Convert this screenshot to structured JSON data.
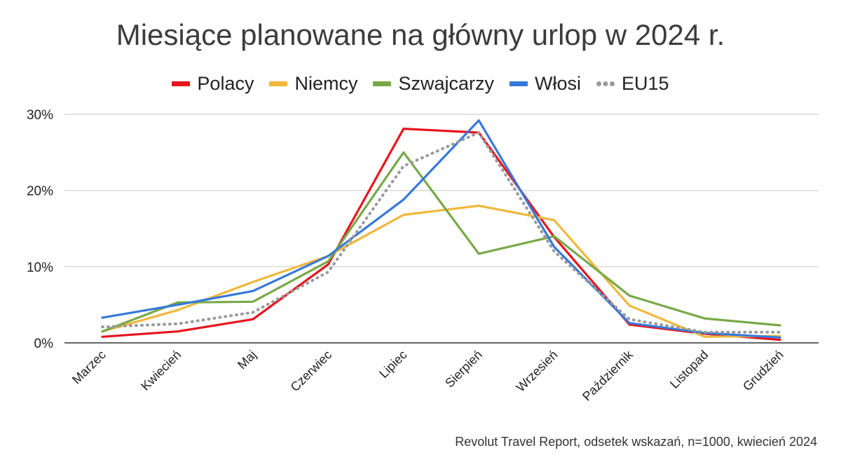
{
  "chart_data": {
    "type": "line",
    "title": "Miesiące planowane na główny urlop w 2024 r.",
    "xlabel": "",
    "ylabel": "",
    "ylim": [
      0,
      30
    ],
    "yticks": [
      0,
      10,
      20,
      30
    ],
    "ytick_labels": [
      "0%",
      "10%",
      "20%",
      "30%"
    ],
    "categories": [
      "Marzec",
      "Kwiecień",
      "Maj",
      "Czerwiec",
      "Lipiec",
      "Sierpień",
      "Wrzesień",
      "Październik",
      "Listopad",
      "Grudzień"
    ],
    "legend_position": "top-center",
    "grid": true,
    "series": [
      {
        "name": "Polacy",
        "color": "#e8141c",
        "style": "solid",
        "values": [
          0.8,
          1.5,
          3.1,
          10.3,
          28.1,
          27.6,
          13.9,
          2.4,
          1.2,
          0.4
        ]
      },
      {
        "name": "Niemcy",
        "color": "#f1b73a",
        "style": "solid",
        "values": [
          1.5,
          4.3,
          8.0,
          11.4,
          16.8,
          18.0,
          16.1,
          4.9,
          0.8,
          0.9
        ]
      },
      {
        "name": "Szwajcarzy",
        "color": "#78a948",
        "style": "solid",
        "values": [
          1.5,
          5.3,
          5.4,
          10.7,
          25.0,
          11.7,
          14.0,
          6.2,
          3.2,
          2.3
        ]
      },
      {
        "name": "Włosi",
        "color": "#3779d9",
        "style": "solid",
        "values": [
          3.3,
          5.0,
          6.8,
          11.4,
          18.8,
          29.2,
          12.6,
          2.6,
          1.3,
          0.7
        ]
      },
      {
        "name": "EU15",
        "color": "#9a9a9a",
        "style": "dotted",
        "values": [
          2.1,
          2.5,
          4.0,
          9.3,
          23.2,
          27.6,
          12.0,
          3.1,
          1.4,
          1.4
        ]
      }
    ]
  },
  "source_note": "Revolut Travel Report, odsetek wskazań, n=1000, kwiecień 2024"
}
